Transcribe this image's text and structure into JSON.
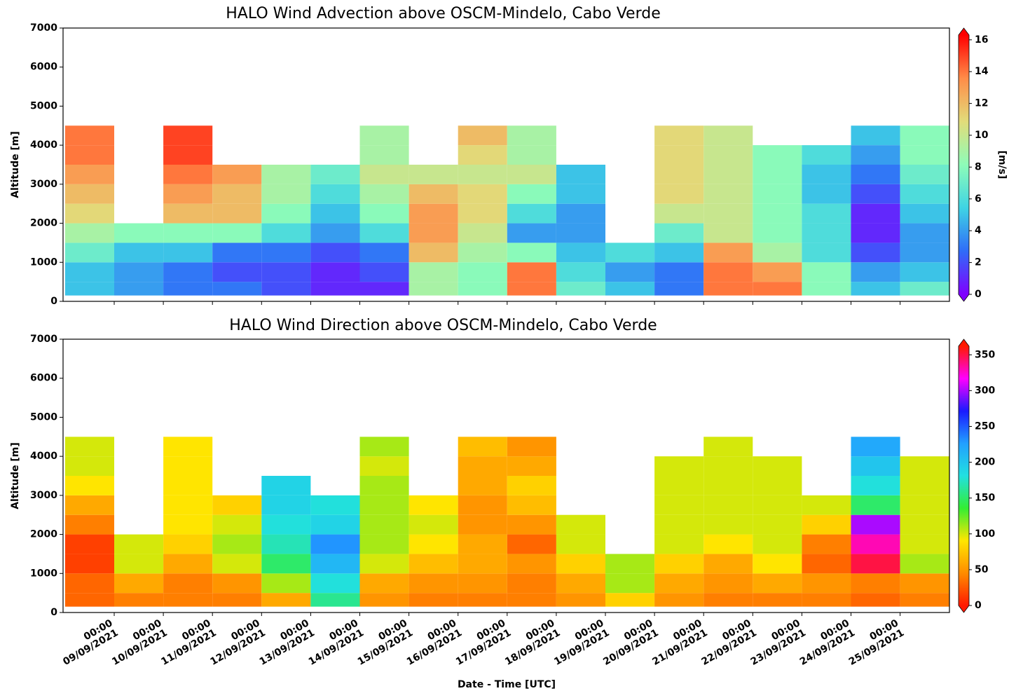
{
  "chart_data": [
    {
      "type": "heatmap",
      "title": "HALO Wind Advection above OSCM-Mindelo, Cabo Verde",
      "ylabel": "Altitude [m]",
      "ylim": [
        0,
        7000
      ],
      "yticks": [
        0,
        1000,
        2000,
        3000,
        4000,
        5000,
        6000,
        7000
      ],
      "x": [
        null,
        "09/09/2021",
        "10/09/2021",
        "11/09/2021",
        "12/09/2021",
        "13/09/2021",
        "14/09/2021",
        "15/09/2021",
        "16/09/2021",
        "17/09/2021",
        "18/09/2021",
        "19/09/2021",
        "20/09/2021",
        "21/09/2021",
        "22/09/2021",
        "23/09/2021",
        "24/09/2021",
        "25/09/2021"
      ],
      "xtick_labels": false,
      "ybins": [
        150,
        500,
        1000,
        1500,
        2000,
        2500,
        3000,
        3500,
        4000,
        4500
      ],
      "z": [
        [
          5,
          5,
          7,
          9,
          11,
          12,
          13,
          14,
          14
        ],
        [
          4,
          4,
          5,
          8,
          null,
          null,
          null,
          null,
          null
        ],
        [
          3,
          3,
          5,
          8,
          12,
          13,
          14,
          15,
          15
        ],
        [
          3,
          2,
          3,
          8,
          12,
          12,
          13,
          null,
          null
        ],
        [
          2,
          2,
          3,
          6,
          8,
          9,
          9,
          null,
          null
        ],
        [
          1,
          1,
          2,
          4,
          5,
          6,
          7,
          null,
          null
        ],
        [
          1,
          2,
          3,
          6,
          8,
          9,
          10,
          9,
          9
        ],
        [
          9,
          9,
          12,
          13,
          13,
          12,
          10,
          null,
          null
        ],
        [
          8,
          8,
          9,
          10,
          11,
          11,
          10,
          11,
          12
        ],
        [
          14,
          14,
          8,
          4,
          6,
          8,
          10,
          9,
          9
        ],
        [
          7,
          6,
          5,
          4,
          4,
          5,
          5,
          null,
          null
        ],
        [
          5,
          4,
          6,
          null,
          null,
          null,
          null,
          null,
          null
        ],
        [
          3,
          3,
          5,
          7,
          10,
          11,
          11,
          11,
          11
        ],
        [
          14,
          14,
          13,
          10,
          10,
          10,
          10,
          10,
          10
        ],
        [
          14,
          13,
          9,
          8,
          8,
          8,
          8,
          8,
          null
        ],
        [
          8,
          8,
          6,
          6,
          6,
          5,
          5,
          6,
          null
        ],
        [
          5,
          4,
          2,
          1,
          1,
          2,
          3,
          4,
          5
        ],
        [
          7,
          5,
          4,
          4,
          5,
          6,
          7,
          8,
          8
        ]
      ],
      "clim": [
        0,
        16.3
      ],
      "cticks": [
        0,
        2,
        4,
        6,
        8,
        10,
        12,
        14,
        16
      ],
      "colorbar_label": "[m/s]",
      "colormap": [
        "#7f00ff",
        "#2f6cf8",
        "#3fd4e4",
        "#8efcb8",
        "#e2dc7a",
        "#ff8c48",
        "#ff0000"
      ]
    },
    {
      "type": "heatmap",
      "title": "HALO Wind Direction above OSCM-Mindelo, Cabo Verde",
      "ylabel": "Altitude [m]",
      "xlabel": "Date - Time [UTC]",
      "ylim": [
        0,
        7000
      ],
      "yticks": [
        0,
        1000,
        2000,
        3000,
        4000,
        5000,
        6000,
        7000
      ],
      "x": [
        null,
        "09/09/2021",
        "10/09/2021",
        "11/09/2021",
        "12/09/2021",
        "13/09/2021",
        "14/09/2021",
        "15/09/2021",
        "16/09/2021",
        "17/09/2021",
        "18/09/2021",
        "19/09/2021",
        "20/09/2021",
        "21/09/2021",
        "22/09/2021",
        "23/09/2021",
        "24/09/2021",
        "25/09/2021"
      ],
      "xtick_time": "00:00",
      "xtick_labels": true,
      "ybins": [
        150,
        500,
        1000,
        1500,
        2000,
        2500,
        3000,
        3500,
        4000,
        4500
      ],
      "z": [
        [
          30,
          30,
          15,
          15,
          40,
          60,
          90,
          100,
          100
        ],
        [
          40,
          60,
          100,
          100,
          null,
          null,
          null,
          null,
          null
        ],
        [
          40,
          40,
          60,
          80,
          90,
          90,
          90,
          90,
          90
        ],
        [
          40,
          50,
          100,
          110,
          100,
          80,
          null,
          null,
          null
        ],
        [
          60,
          110,
          150,
          170,
          180,
          190,
          190,
          null,
          null
        ],
        [
          160,
          180,
          210,
          230,
          190,
          180,
          null,
          null,
          null
        ],
        [
          50,
          60,
          100,
          110,
          110,
          110,
          110,
          100,
          110
        ],
        [
          40,
          50,
          70,
          90,
          100,
          90,
          null,
          null,
          null
        ],
        [
          40,
          50,
          60,
          60,
          50,
          50,
          60,
          60,
          70
        ],
        [
          40,
          40,
          50,
          30,
          50,
          70,
          80,
          60,
          50
        ],
        [
          50,
          60,
          80,
          100,
          100,
          null,
          null,
          null,
          null
        ],
        [
          80,
          110,
          110,
          null,
          null,
          null,
          null,
          null,
          null
        ],
        [
          50,
          60,
          80,
          100,
          100,
          100,
          100,
          100,
          null
        ],
        [
          40,
          50,
          60,
          90,
          100,
          100,
          100,
          100,
          100
        ],
        [
          40,
          60,
          90,
          100,
          100,
          100,
          100,
          100,
          null
        ],
        [
          40,
          50,
          30,
          40,
          80,
          100,
          null,
          null,
          null
        ],
        [
          30,
          40,
          350,
          330,
          300,
          150,
          180,
          200,
          220
        ],
        [
          40,
          50,
          110,
          100,
          100,
          100,
          100,
          100,
          null
        ]
      ],
      "clim": [
        0,
        362
      ],
      "cticks": [
        0,
        50,
        100,
        150,
        200,
        250,
        300,
        350
      ],
      "colormap": [
        "#ff1a00",
        "#ff8c00",
        "#ffe600",
        "#33ee33",
        "#22e0e0",
        "#22a0ff",
        "#1a1aff",
        "#ff00ff",
        "#ff1a00"
      ]
    }
  ]
}
